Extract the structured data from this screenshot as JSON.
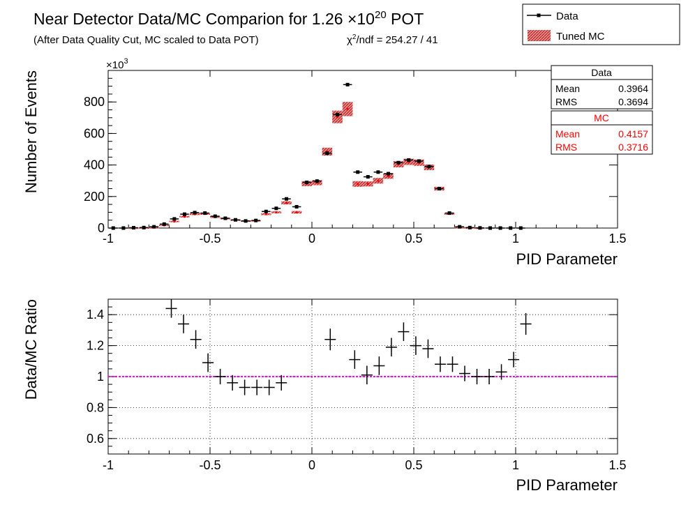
{
  "header": {
    "title": "Near Detector Data/MC Comparion for 1.26 ×10",
    "title_exp": "20",
    "title_end": " POT",
    "subtitle": "(After Data Quality Cut, MC scaled to Data POT)",
    "chi2_prefix": "χ",
    "chi2_exp": "2",
    "chi2_text": "/ndf = 254.27 / 41"
  },
  "legend": {
    "data_label": "Data",
    "mc_label": "Tuned MC"
  },
  "stats": {
    "data": {
      "title": "Data",
      "mean_label": "Mean",
      "mean_value": "0.3964",
      "rms_label": "RMS",
      "rms_value": "0.3694"
    },
    "mc": {
      "title": "MC",
      "mean_label": "Mean",
      "mean_value": "0.4157",
      "rms_label": "RMS",
      "rms_value": "0.3716"
    }
  },
  "colors": {
    "data": "#000000",
    "mc_fill": "#d96b6b",
    "mc_hatch": "#b00000",
    "mc_text": "#ff0000",
    "unity_line": "#ff00ff"
  },
  "chart_data": [
    {
      "type": "line",
      "name": "top-panel",
      "xlabel": "PID Parameter",
      "ylabel": "Number of Events",
      "y_multiplier_label": "×10",
      "y_multiplier_exp": "3",
      "xlim": [
        -1,
        1.5
      ],
      "ylim": [
        0,
        1000
      ],
      "xticks": [
        -1,
        -0.5,
        0,
        0.5,
        1,
        1.5
      ],
      "xtick_labels": [
        "-1",
        "-0.5",
        "0",
        "0.5",
        "1",
        "1.5"
      ],
      "yticks": [
        0,
        200,
        400,
        600,
        800
      ],
      "ytick_labels": [
        "0",
        "200",
        "400",
        "600",
        "800"
      ],
      "bin_width": 0.05,
      "bin_centers": [
        -0.975,
        -0.925,
        -0.875,
        -0.825,
        -0.775,
        -0.725,
        -0.675,
        -0.625,
        -0.575,
        -0.525,
        -0.475,
        -0.425,
        -0.375,
        -0.325,
        -0.275,
        -0.225,
        -0.175,
        -0.125,
        -0.075,
        -0.025,
        0.025,
        0.075,
        0.125,
        0.175,
        0.225,
        0.275,
        0.325,
        0.375,
        0.425,
        0.475,
        0.525,
        0.575,
        0.625,
        0.675,
        0.725,
        0.775,
        0.825,
        0.875,
        0.925,
        0.975,
        1.025,
        1.075,
        1.125,
        1.175,
        1.225,
        1.275,
        1.325,
        1.375,
        1.425,
        1.475
      ],
      "series": [
        {
          "name": "Data",
          "values": [
            0,
            0,
            2,
            3,
            8,
            25,
            58,
            88,
            98,
            95,
            75,
            62,
            52,
            45,
            48,
            105,
            125,
            185,
            135,
            290,
            298,
            475,
            720,
            910,
            355,
            325,
            355,
            345,
            415,
            432,
            425,
            390,
            250,
            95,
            8,
            3,
            1,
            0,
            0,
            0,
            0,
            0,
            0,
            0,
            0,
            0,
            0,
            0,
            0,
            0
          ],
          "note_x_offset": 0
        },
        {
          "name": "Tuned MC",
          "values": [
            0,
            0,
            1,
            2,
            6,
            18,
            42,
            72,
            88,
            90,
            70,
            60,
            50,
            45,
            46,
            88,
            100,
            160,
            100,
            282,
            288,
            485,
            705,
            755,
            280,
            280,
            300,
            330,
            405,
            420,
            415,
            385,
            250,
            90,
            6,
            2,
            1,
            0,
            0,
            0,
            0,
            0,
            0,
            0,
            0,
            0,
            0,
            0,
            0,
            0
          ],
          "band": [
            0,
            0,
            1,
            1,
            2,
            3,
            4,
            5,
            6,
            6,
            6,
            5,
            5,
            4,
            4,
            6,
            6,
            10,
            8,
            16,
            16,
            25,
            40,
            45,
            18,
            16,
            18,
            18,
            20,
            20,
            20,
            18,
            12,
            6,
            2,
            1,
            1,
            0,
            0,
            0,
            0,
            0,
            0,
            0,
            0,
            0,
            0,
            0,
            0,
            0
          ]
        }
      ]
    },
    {
      "type": "scatter",
      "name": "bottom-panel",
      "xlabel": "PID Parameter",
      "ylabel": "Data/MC Ratio",
      "xlim": [
        -1,
        1.5
      ],
      "ylim": [
        0.5,
        1.5
      ],
      "xticks": [
        -1,
        -0.5,
        0,
        0.5,
        1,
        1.5
      ],
      "xtick_labels": [
        "-1",
        "-0.5",
        "0",
        "0.5",
        "1",
        "1.5"
      ],
      "yticks": [
        0.6,
        0.8,
        1,
        1.2,
        1.4
      ],
      "ytick_labels": [
        "0.6",
        "0.8",
        "1",
        "1.2",
        "1.4"
      ],
      "reference_y": 1,
      "grid": true,
      "series": [
        {
          "name": "ratio",
          "x": [
            -0.69,
            -0.63,
            -0.57,
            -0.51,
            -0.45,
            -0.39,
            -0.33,
            -0.27,
            -0.21,
            -0.15,
            0.09,
            0.21,
            0.27,
            0.33,
            0.39,
            0.45,
            0.51,
            0.57,
            0.63,
            0.69,
            0.75,
            0.81,
            0.87,
            0.93,
            0.99,
            1.05
          ],
          "y": [
            1.44,
            1.34,
            1.24,
            1.09,
            1.0,
            0.96,
            0.93,
            0.93,
            0.93,
            0.96,
            1.24,
            1.11,
            1.01,
            1.07,
            1.19,
            1.29,
            1.2,
            1.18,
            1.08,
            1.08,
            1.02,
            1.0,
            1.0,
            1.03,
            1.11,
            1.34
          ],
          "err": [
            0.06,
            0.06,
            0.06,
            0.06,
            0.05,
            0.05,
            0.05,
            0.05,
            0.05,
            0.05,
            0.07,
            0.06,
            0.06,
            0.06,
            0.06,
            0.06,
            0.06,
            0.06,
            0.05,
            0.05,
            0.05,
            0.05,
            0.05,
            0.05,
            0.05,
            0.07
          ]
        }
      ]
    }
  ]
}
